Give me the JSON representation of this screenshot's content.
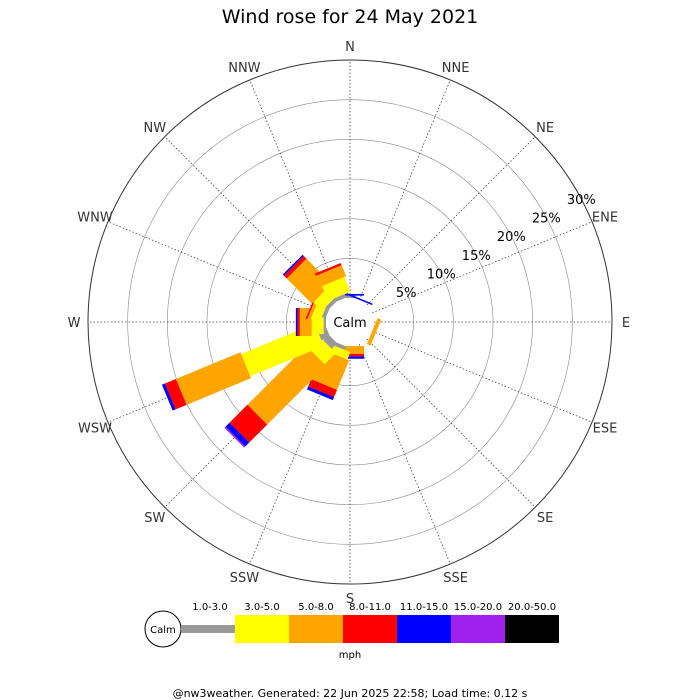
{
  "title": "Wind rose for 24 May 2021",
  "footer": "@nw3weather. Generated: 22 Jun 2025 22:58; Load time: 0.12 s",
  "chart_data": {
    "type": "wind-rose",
    "title": "Wind rose for 24 May 2021",
    "calm_label": "Calm",
    "unit_label": "mph",
    "directions": [
      "N",
      "NNE",
      "NE",
      "ENE",
      "E",
      "ESE",
      "SE",
      "SSE",
      "S",
      "SSW",
      "SW",
      "WSW",
      "W",
      "WNW",
      "NW",
      "NNW"
    ],
    "radial_ticks": [
      "5%",
      "10%",
      "15%",
      "20%",
      "25%",
      "30%"
    ],
    "radial_tick_values": [
      5,
      10,
      15,
      20,
      25,
      30
    ],
    "radial_max": 30,
    "calm_radius_pct": 2,
    "speed_bins": [
      {
        "label": "1.0-3.0",
        "color": "#999999"
      },
      {
        "label": "3.0-5.0",
        "color": "#ffff00"
      },
      {
        "label": "5.0-8.0",
        "color": "#ffa500"
      },
      {
        "label": "8.0-11.0",
        "color": "#ff0000"
      },
      {
        "label": "11.0-15.0",
        "color": "#0000ff"
      },
      {
        "label": "15.0-20.0",
        "color": "#a020f0"
      },
      {
        "label": "20.0-50.0",
        "color": "#000000"
      }
    ],
    "series": [
      {
        "direction": "N",
        "values": [
          0.3,
          0,
          0,
          0,
          0.2,
          0,
          0
        ]
      },
      {
        "direction": "NNE",
        "values": [
          0,
          0,
          0,
          0,
          0.2,
          0,
          0
        ]
      },
      {
        "direction": "NE",
        "values": [
          0,
          0,
          0,
          0,
          0,
          0,
          0
        ]
      },
      {
        "direction": "ENE",
        "values": [
          0,
          0,
          0,
          0,
          0,
          0,
          0
        ]
      },
      {
        "direction": "E",
        "values": [
          0,
          0,
          0,
          0,
          0,
          0,
          0
        ]
      },
      {
        "direction": "ESE",
        "values": [
          0,
          0,
          0.5,
          0,
          0,
          0,
          0
        ]
      },
      {
        "direction": "SE",
        "values": [
          0,
          0,
          0,
          0,
          0,
          0,
          0
        ]
      },
      {
        "direction": "SSE",
        "values": [
          0,
          0,
          0,
          0,
          0,
          0,
          0
        ]
      },
      {
        "direction": "S",
        "values": [
          0,
          0,
          1.0,
          0.3,
          0.3,
          0,
          0
        ]
      },
      {
        "direction": "SSW",
        "values": [
          0.5,
          1.0,
          4.0,
          1.0,
          0.4,
          0,
          0
        ]
      },
      {
        "direction": "SW",
        "values": [
          1.0,
          2.0,
          10.5,
          3.2,
          0.7,
          0.2,
          0
        ]
      },
      {
        "direction": "WSW",
        "values": [
          1.2,
          10.0,
          8.8,
          1.5,
          0.4,
          0,
          0
        ]
      },
      {
        "direction": "W",
        "values": [
          0.3,
          1.5,
          1.5,
          0.3,
          0.2,
          0,
          0
        ]
      },
      {
        "direction": "WNW",
        "values": [
          0.5,
          1.2,
          0.4,
          0.2,
          0,
          0,
          0
        ]
      },
      {
        "direction": "NW",
        "values": [
          0.5,
          1.5,
          4.5,
          0.5,
          0.2,
          0,
          0
        ]
      },
      {
        "direction": "NNW",
        "values": [
          0.5,
          2.0,
          1.5,
          0.3,
          0,
          0,
          0
        ]
      }
    ]
  }
}
